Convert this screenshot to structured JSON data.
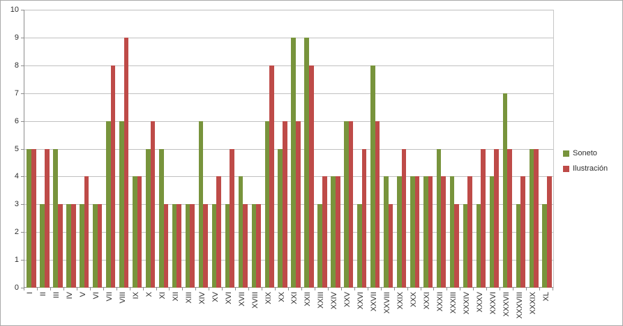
{
  "chart_data": {
    "type": "bar",
    "title": "",
    "categories": [
      "I",
      "II",
      "III",
      "IV",
      "V",
      "VI",
      "VII",
      "VIII",
      "IX",
      "X",
      "XI",
      "XII",
      "XIII",
      "XIV",
      "XV",
      "XVI",
      "XVII",
      "XVIII",
      "XIX",
      "XX",
      "XXI",
      "XXII",
      "XXIII",
      "XXIV",
      "XXV",
      "XXVI",
      "XXVII",
      "XXVIII",
      "XXIX",
      "XXX",
      "XXXI",
      "XXXII",
      "XXXIII",
      "XXXIV",
      "XXXV",
      "XXXVI",
      "XXXVII",
      "XXXVIII",
      "XXXIX",
      "XL"
    ],
    "series": [
      {
        "name": "Soneto",
        "color": "#78943c",
        "values": [
          5,
          3,
          5,
          3,
          3,
          3,
          6,
          6,
          4,
          5,
          5,
          3,
          3,
          6,
          3,
          3,
          4,
          3,
          6,
          5,
          9,
          9,
          3,
          4,
          6,
          3,
          8,
          4,
          4,
          4,
          4,
          5,
          4,
          3,
          3,
          4,
          7,
          3,
          5,
          3
        ]
      },
      {
        "name": "Ilustración",
        "color": "#be4b48",
        "values": [
          5,
          5,
          3,
          3,
          4,
          3,
          8,
          9,
          4,
          6,
          3,
          3,
          3,
          3,
          4,
          5,
          3,
          3,
          8,
          6,
          6,
          8,
          4,
          4,
          6,
          5,
          6,
          3,
          5,
          4,
          4,
          4,
          3,
          4,
          5,
          5,
          5,
          4,
          5,
          4
        ]
      }
    ],
    "xlabel": "",
    "ylabel": "",
    "ylim": [
      0,
      10
    ],
    "ytick_labels": [
      "0",
      "1",
      "2",
      "3",
      "4",
      "5",
      "6",
      "7",
      "8",
      "9",
      "10"
    ],
    "grid": true,
    "gridline_color": "#c0c0c0",
    "axis_color": "#8c8c8c",
    "text_color": "#2e2e2e",
    "legend_position": "right",
    "x_label_rotation": -90
  },
  "legend": {
    "items": [
      {
        "label": "Soneto",
        "color": "#78943c"
      },
      {
        "label": "Ilustración",
        "color": "#be4b48"
      }
    ]
  }
}
